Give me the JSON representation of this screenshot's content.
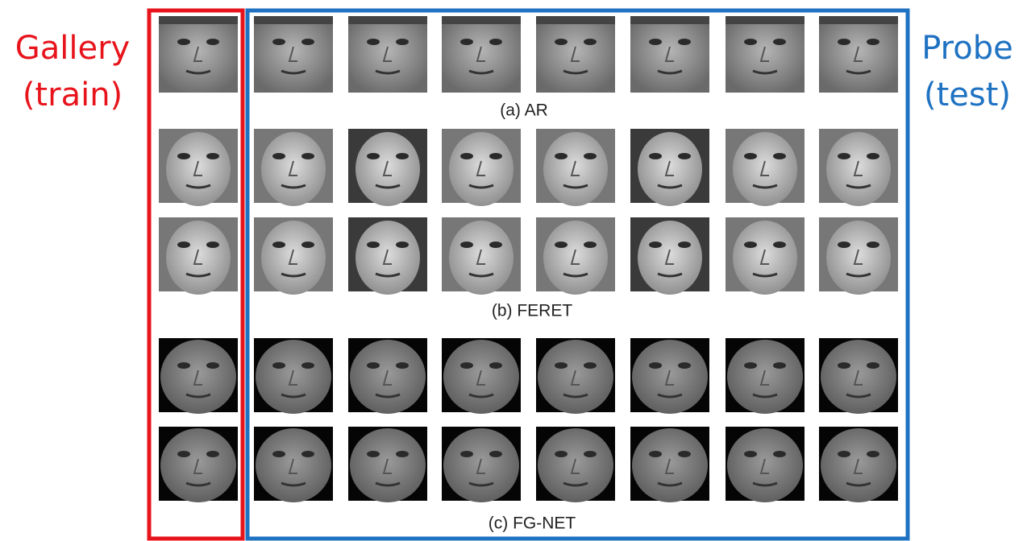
{
  "labels": {
    "gallery": "Gallery",
    "gallery_sub": "(train)",
    "probe": "Probe",
    "probe_sub": "(test)"
  },
  "captions": [
    "(a) AR",
    "(b) FERET",
    "(c) FG-NET"
  ]
}
